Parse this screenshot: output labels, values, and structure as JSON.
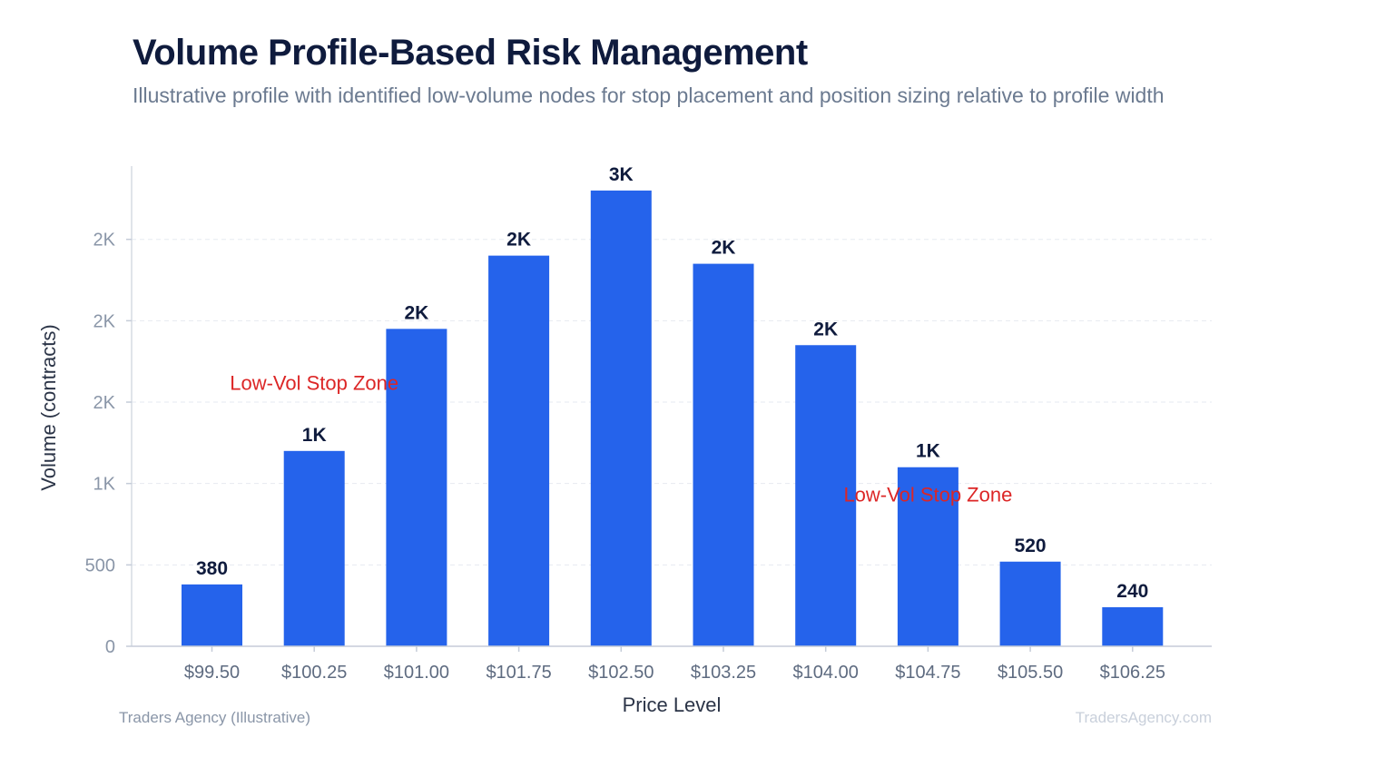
{
  "chart_data": {
    "type": "bar",
    "title": "Volume Profile-Based Risk Management",
    "subtitle": "Illustrative profile with identified low-volume nodes for stop placement and position sizing relative to profile width",
    "xlabel": "Price Level",
    "ylabel": "Volume (contracts)",
    "categories": [
      "$99.50",
      "$100.25",
      "$101.00",
      "$101.75",
      "$102.50",
      "$103.25",
      "$104.00",
      "$104.75",
      "$105.50",
      "$106.25"
    ],
    "values": [
      380,
      1200,
      1950,
      2400,
      2800,
      2350,
      1850,
      1100,
      520,
      240
    ],
    "data_labels": [
      "380",
      "1K",
      "2K",
      "2K",
      "3K",
      "2K",
      "2K",
      "1K",
      "520",
      "240"
    ],
    "ylim": [
      0,
      2950
    ],
    "yticks": [
      {
        "value": 0,
        "label": "0"
      },
      {
        "value": 500,
        "label": "500"
      },
      {
        "value": 1000,
        "label": "1K"
      },
      {
        "value": 1500,
        "label": "2K"
      },
      {
        "value": 2000,
        "label": "2K"
      },
      {
        "value": 2500,
        "label": "2K"
      }
    ],
    "grid": true,
    "bar_color": "#2563eb",
    "annotations": [
      {
        "text": "Low-Vol Stop Zone",
        "category": "$100.25",
        "value": 1620
      },
      {
        "text": "Low-Vol Stop Zone",
        "category": "$104.75",
        "value": 935
      }
    ],
    "annotation_color": "#dc2626",
    "footer_left": "Traders Agency (Illustrative)",
    "footer_right": "TradersAgency.com"
  }
}
